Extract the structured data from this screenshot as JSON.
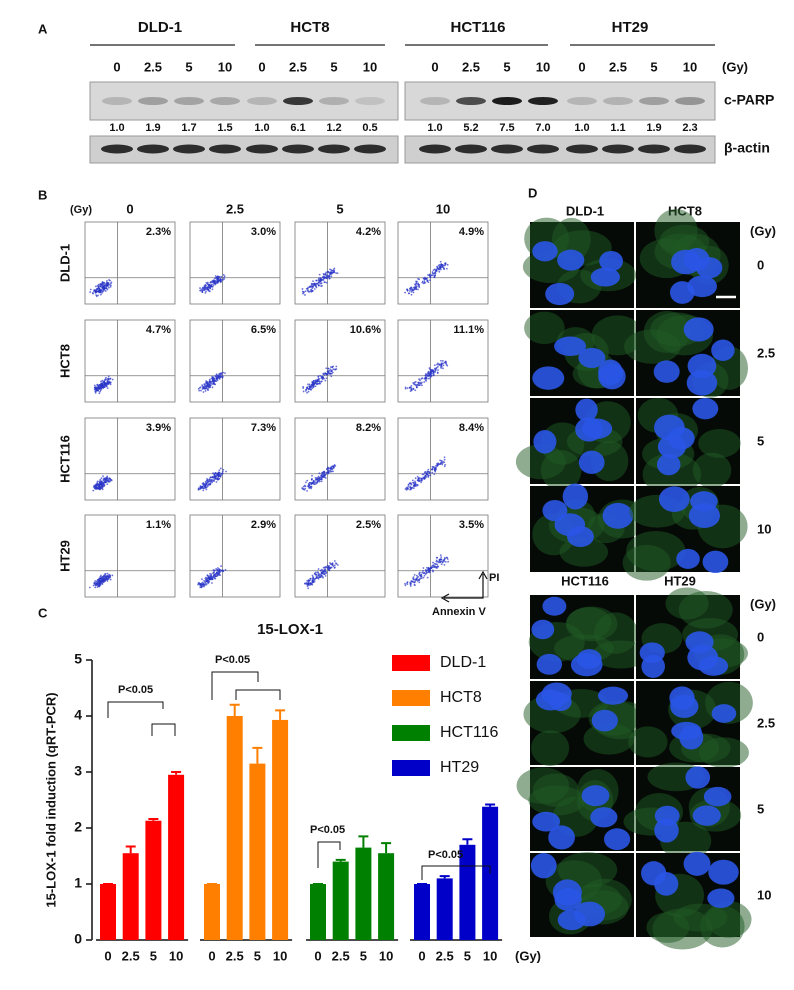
{
  "panel_a": {
    "label": "A",
    "cell_lines": [
      "DLD-1",
      "HCT8",
      "HCT116",
      "HT29"
    ],
    "doses": [
      "0",
      "2.5",
      "5",
      "10"
    ],
    "unit": "(Gy)",
    "rows": [
      "c-PARP",
      "β-actin"
    ],
    "c_parp_levels": [
      "1.0",
      "1.9",
      "1.7",
      "1.5",
      "1.0",
      "6.1",
      "1.2",
      "0.5",
      "1.0",
      "5.2",
      "7.5",
      "7.0",
      "1.0",
      "1.1",
      "1.9",
      "2.3"
    ]
  },
  "panel_b": {
    "label": "B",
    "unit": "(Gy)",
    "doses": [
      "0",
      "2.5",
      "5",
      "10"
    ],
    "cell_lines": [
      "DLD-1",
      "HCT8",
      "HCT116",
      "HT29"
    ],
    "percentages": [
      [
        "2.3%",
        "3.0%",
        "4.2%",
        "4.9%"
      ],
      [
        "4.7%",
        "6.5%",
        "10.6%",
        "11.1%"
      ],
      [
        "3.9%",
        "7.3%",
        "8.2%",
        "8.4%"
      ],
      [
        "1.1%",
        "2.9%",
        "2.5%",
        "3.5%"
      ]
    ],
    "y_axis": "PI",
    "x_axis": "Annexin V"
  },
  "chart_data": {
    "type": "bar",
    "panel_label": "C",
    "title": "15-LOX-1",
    "y_label": "15-LOX-1 fold induction (qRT-PCR)",
    "x_unit": "(Gy)",
    "categories": [
      "0",
      "2.5",
      "5",
      "10"
    ],
    "series": [
      {
        "name": "DLD-1",
        "color": "#ff0000",
        "values": [
          1,
          1.55,
          2.13,
          2.95
        ],
        "errors": [
          0,
          0.12,
          0.03,
          0.05
        ]
      },
      {
        "name": "HCT8",
        "color": "#ff7f00",
        "values": [
          1,
          4.0,
          3.15,
          3.93
        ],
        "errors": [
          0,
          0.2,
          0.28,
          0.17
        ]
      },
      {
        "name": "HCT116",
        "color": "#008000",
        "values": [
          1,
          1.4,
          1.65,
          1.55
        ],
        "errors": [
          0,
          0.03,
          0.2,
          0.18
        ]
      },
      {
        "name": "HT29",
        "color": "#0000c8",
        "values": [
          1,
          1.1,
          1.7,
          2.38
        ],
        "errors": [
          0,
          0.04,
          0.1,
          0.04
        ]
      }
    ],
    "annotations": [
      "P<0.05",
      "P<0.05",
      "P<0.05",
      "P<0.05"
    ],
    "ylim": [
      0,
      5
    ],
    "yticks": [
      0,
      1,
      2,
      3,
      4,
      5
    ],
    "grid": false,
    "legend": "top-right"
  },
  "panel_d": {
    "label": "D",
    "unit": "(Gy)",
    "doses": [
      "0",
      "2.5",
      "5",
      "10"
    ],
    "groups": [
      {
        "cell_lines": [
          "DLD-1",
          "HCT8"
        ]
      },
      {
        "cell_lines": [
          "HCT116",
          "HT29"
        ]
      }
    ]
  }
}
